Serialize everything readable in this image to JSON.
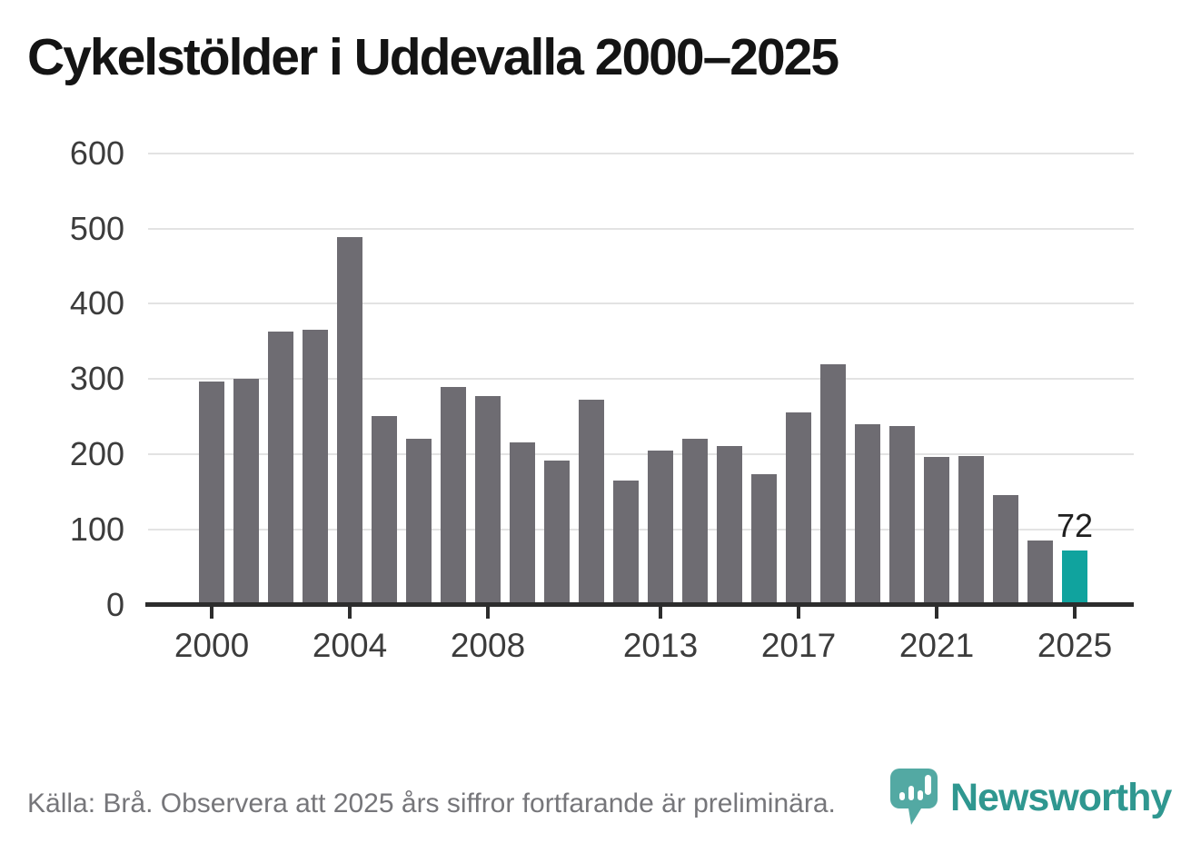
{
  "title": "Cykelstölder i Uddevalla 2000–2025",
  "source_note": "Källa: Brå. Observera att 2025 års siffror fortfarande är preliminära.",
  "brand": {
    "name": "Newsworthy",
    "icon": "speech-bubble-bar-chart-icon",
    "icon_color": "#4aa49e",
    "text_color": "#2f9790"
  },
  "colors": {
    "bar_default": "#6e6c72",
    "bar_highlight": "#10a39e",
    "axis": "#2d2d2d",
    "grid": "#e3e3e3",
    "tick_label": "#3c3c3c",
    "note_text": "#76767a"
  },
  "chart_data": {
    "type": "bar",
    "title": "Cykelstölder i Uddevalla 2000–2025",
    "xlabel": "",
    "ylabel": "",
    "x": [
      2000,
      2001,
      2002,
      2003,
      2004,
      2005,
      2006,
      2007,
      2008,
      2009,
      2010,
      2011,
      2012,
      2013,
      2014,
      2015,
      2016,
      2017,
      2018,
      2019,
      2020,
      2021,
      2022,
      2023,
      2024,
      2025
    ],
    "values": [
      297,
      300,
      363,
      366,
      489,
      251,
      220,
      289,
      277,
      216,
      191,
      272,
      165,
      205,
      221,
      211,
      173,
      256,
      320,
      240,
      237,
      196,
      198,
      145,
      85,
      72
    ],
    "ylim": [
      0,
      600
    ],
    "yticks": [
      0,
      100,
      200,
      300,
      400,
      500,
      600
    ],
    "xticks": [
      2000,
      2004,
      2008,
      2013,
      2017,
      2021,
      2025
    ],
    "grid": "horizontal",
    "legend": "none",
    "highlight_x": 2025,
    "data_label": {
      "x": 2025,
      "text": "72"
    }
  }
}
